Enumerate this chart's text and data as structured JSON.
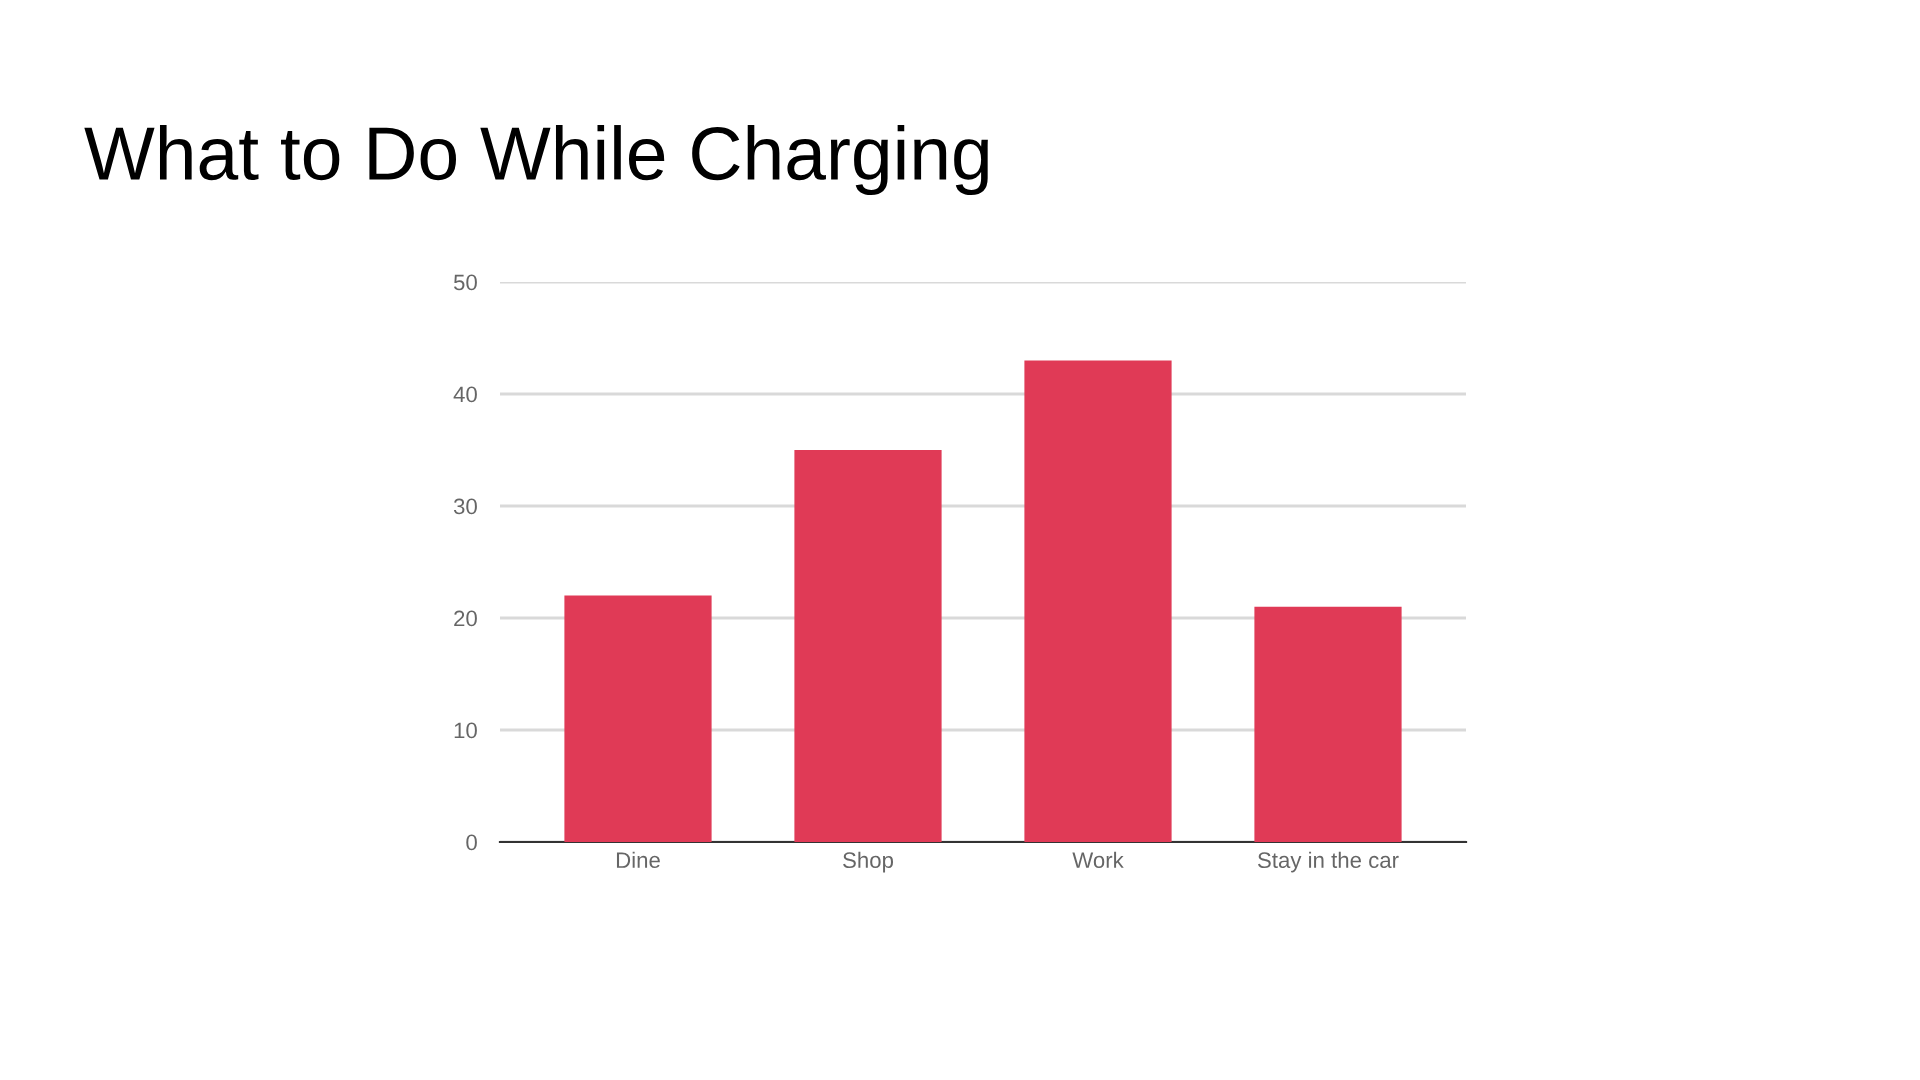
{
  "chart_data": {
    "type": "bar",
    "title": "What to Do While Charging",
    "categories": [
      "Dine",
      "Shop",
      "Work",
      "Stay in the car"
    ],
    "values": [
      22,
      35,
      43,
      21
    ],
    "color": "#e03a56",
    "ylim": [
      0,
      50
    ],
    "yticks": [
      0,
      10,
      20,
      30,
      40,
      50
    ],
    "grid": "y"
  }
}
